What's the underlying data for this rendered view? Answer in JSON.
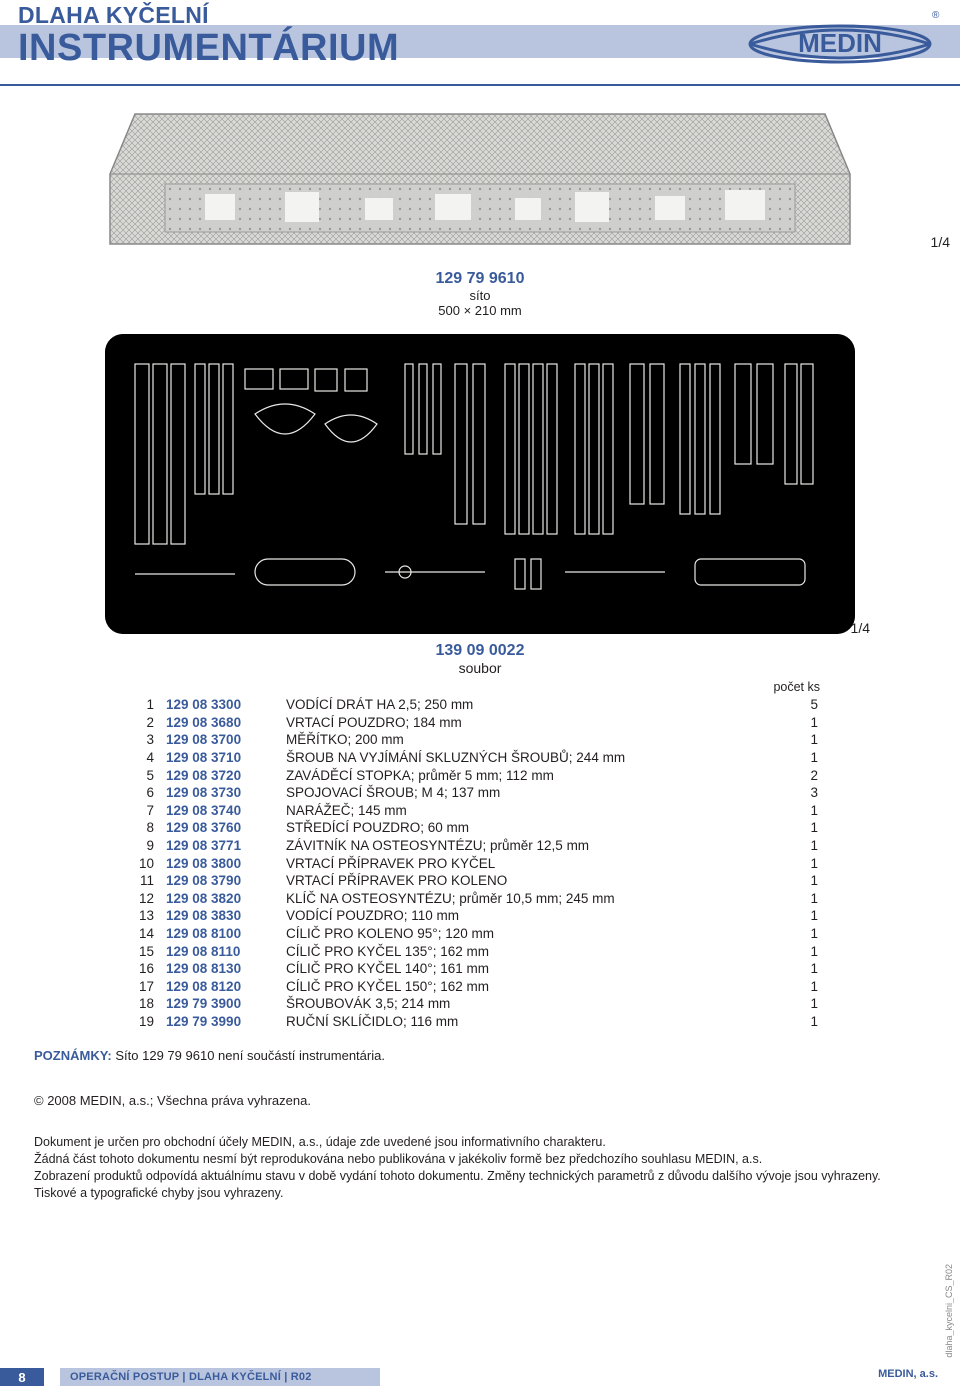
{
  "header": {
    "line1": "DLAHA KYČELNÍ",
    "line2": "INSTRUMENTÁRIUM",
    "logo_text": "MEDIN",
    "logo_reg": "®"
  },
  "colors": {
    "brand_blue": "#3a5b9b",
    "band_blue": "#b9c5de",
    "text": "#231f20"
  },
  "tray": {
    "code": "129 79 9610",
    "label": "síto",
    "dims": "500 × 210 mm",
    "scale": "1/4"
  },
  "set": {
    "code": "139 09 0022",
    "label": "soubor",
    "scale": "1/4"
  },
  "table": {
    "qty_header": "počet ks",
    "rows": [
      {
        "i": "1",
        "code": "129 08 3300",
        "desc": "VODÍCÍ DRÁT HA 2,5; 250 mm",
        "qty": "5"
      },
      {
        "i": "2",
        "code": "129 08 3680",
        "desc": "VRTACÍ POUZDRO; 184 mm",
        "qty": "1"
      },
      {
        "i": "3",
        "code": "129 08 3700",
        "desc": "MĚŘÍTKO; 200 mm",
        "qty": "1"
      },
      {
        "i": "4",
        "code": "129 08 3710",
        "desc": "ŠROUB NA VYJÍMÁNÍ SKLUZNÝCH ŠROUBŮ; 244 mm",
        "qty": "1"
      },
      {
        "i": "5",
        "code": "129 08 3720",
        "desc": "ZAVÁDĚCÍ STOPKA; průměr 5 mm; 112 mm",
        "qty": "2"
      },
      {
        "i": "6",
        "code": "129 08 3730",
        "desc": "SPOJOVACÍ ŠROUB; M 4; 137 mm",
        "qty": "3"
      },
      {
        "i": "7",
        "code": "129 08 3740",
        "desc": "NARÁŽEČ; 145 mm",
        "qty": "1"
      },
      {
        "i": "8",
        "code": "129 08 3760",
        "desc": "STŘEDÍCÍ POUZDRO; 60 mm",
        "qty": "1"
      },
      {
        "i": "9",
        "code": "129 08 3771",
        "desc": "ZÁVITNÍK NA OSTEOSYNTÉZU; průměr 12,5 mm",
        "qty": "1"
      },
      {
        "i": "10",
        "code": "129 08 3800",
        "desc": "VRTACÍ PŘÍPRAVEK PRO KYČEL",
        "qty": "1"
      },
      {
        "i": "11",
        "code": "129 08 3790",
        "desc": "VRTACÍ PŘÍPRAVEK PRO KOLENO",
        "qty": "1"
      },
      {
        "i": "12",
        "code": "129 08 3820",
        "desc": "KLÍČ NA OSTEOSYNTÉZU; průměr 10,5 mm; 245 mm",
        "qty": "1"
      },
      {
        "i": "13",
        "code": "129 08 3830",
        "desc": "VODÍCÍ POUZDRO; 110 mm",
        "qty": "1"
      },
      {
        "i": "14",
        "code": "129 08 8100",
        "desc": "CÍLIČ PRO KOLENO 95°; 120 mm",
        "qty": "1"
      },
      {
        "i": "15",
        "code": "129 08 8110",
        "desc": "CÍLIČ PRO KYČEL 135°; 162 mm",
        "qty": "1"
      },
      {
        "i": "16",
        "code": "129 08 8130",
        "desc": "CÍLIČ PRO KYČEL 140°; 161 mm",
        "qty": "1"
      },
      {
        "i": "17",
        "code": "129 08 8120",
        "desc": "CÍLIČ PRO KYČEL 150°; 162 mm",
        "qty": "1"
      },
      {
        "i": "18",
        "code": "129 79 3900",
        "desc": "ŠROUBOVÁK 3,5; 214 mm",
        "qty": "1"
      },
      {
        "i": "19",
        "code": "129 79 3990",
        "desc": "RUČNÍ SKLÍČIDLO; 116 mm",
        "qty": "1"
      }
    ]
  },
  "notes": {
    "label": "POZNÁMKY:",
    "text": "Síto 129 79 9610 není součástí instrumentária."
  },
  "copyright": "© 2008 MEDIN, a.s.; Všechna práva vyhrazena.",
  "legal": [
    "Dokument je určen pro obchodní účely MEDIN, a.s., údaje zde uvedené jsou informativního charakteru.",
    "Žádná část tohoto dokumentu nesmí být reprodukována nebo publikována v jakékoliv formě bez předchozího souhlasu MEDIN, a.s.",
    "Zobrazení produktů odpovídá aktuálnímu stavu v době vydání tohoto dokumentu. Změny technických parametrů z důvodu dalšího vývoje jsou vyhrazeny.",
    "Tiskové a typografické chyby jsou vyhrazeny."
  ],
  "footer": {
    "page": "8",
    "breadcrumb": "OPERAČNÍ POSTUP  |  DLAHA KYČELNÍ  |  R02",
    "right": "MEDIN, a.s."
  },
  "side_label": "dlaha_kycelni_CS_R02"
}
